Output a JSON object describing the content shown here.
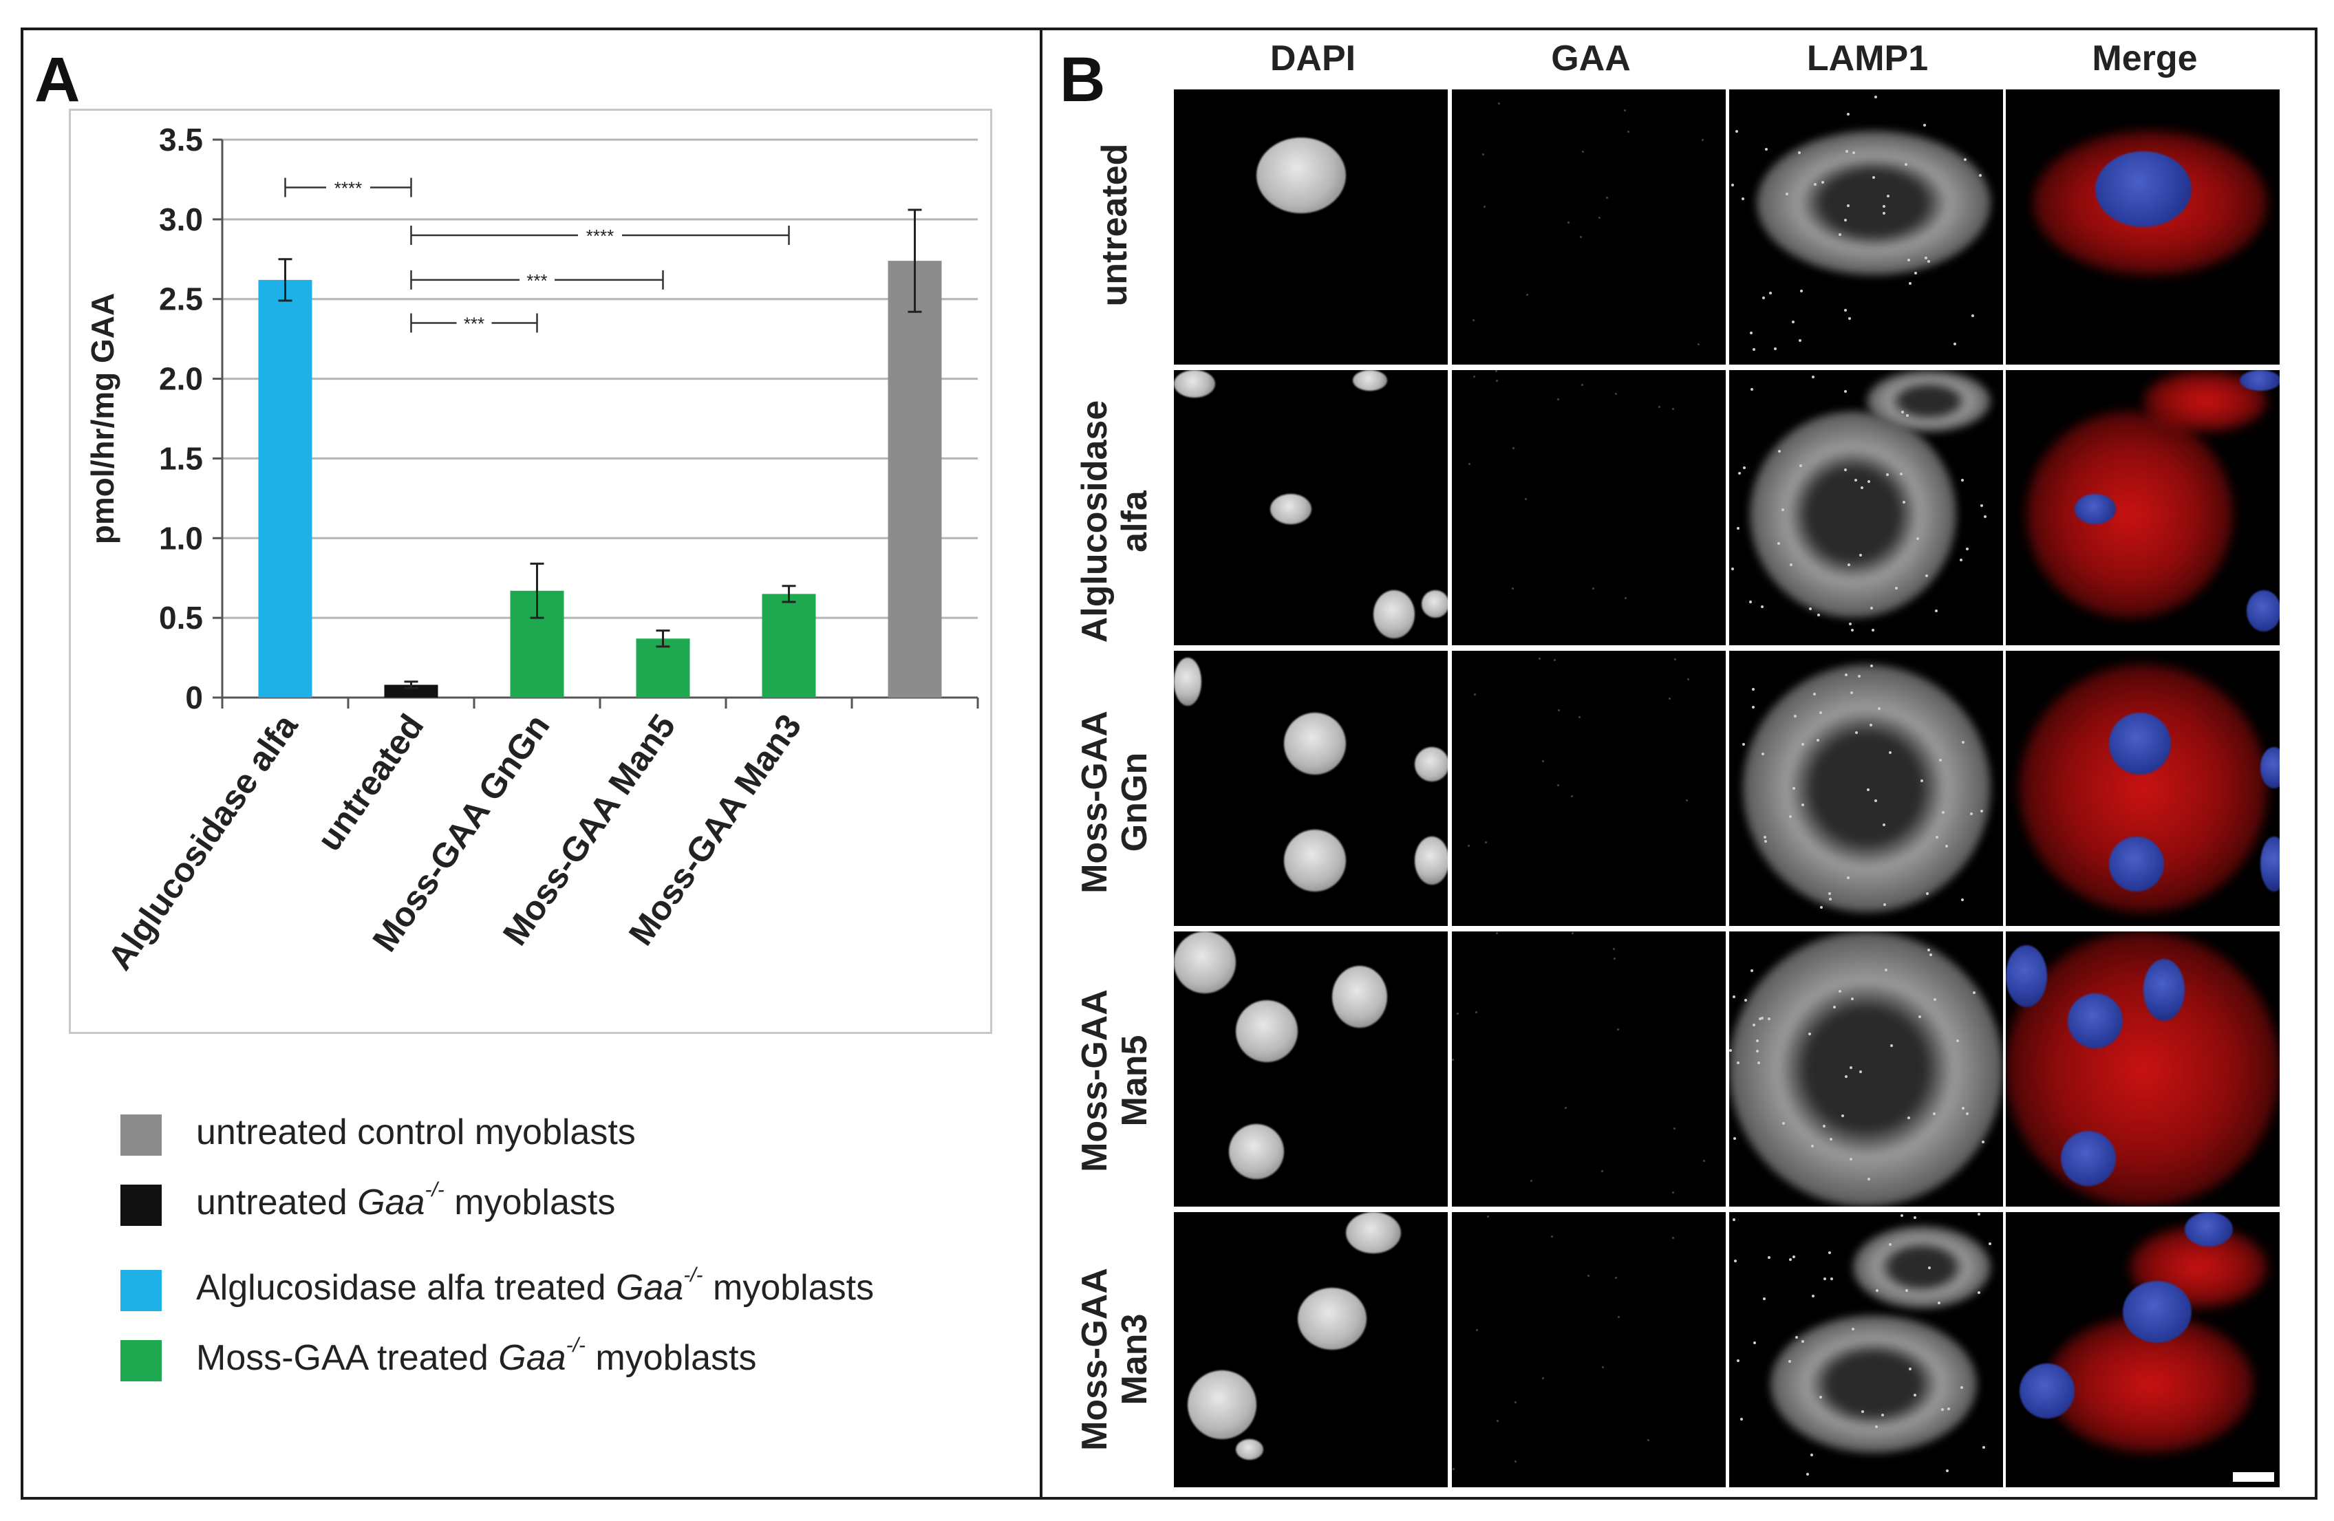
{
  "panel_a": {
    "letter": "A"
  },
  "panel_b": {
    "letter": "B"
  },
  "chart_data": {
    "type": "bar",
    "title": "",
    "xlabel": "",
    "ylabel": "pmol/hr/mg GAA",
    "ylim": [
      0,
      3.5
    ],
    "yticks": [
      "0",
      "0.5",
      "1.0",
      "1.5",
      "2.0",
      "2.5",
      "3.0",
      "3.5"
    ],
    "grid": true,
    "categories": [
      "Alglucosidase alfa",
      "untreated",
      "Moss-GAA GnGn",
      "Moss-GAA Man5",
      "Moss-GAA Man3",
      ""
    ],
    "values": [
      2.62,
      0.08,
      0.67,
      0.37,
      0.65,
      2.74
    ],
    "errors": [
      0.13,
      0.02,
      0.17,
      0.05,
      0.05,
      0.32
    ],
    "colors": [
      "#1eb1e7",
      "#111111",
      "#1ea84f",
      "#1ea84f",
      "#1ea84f",
      "#8c8c8c"
    ],
    "significance": [
      {
        "from": 0,
        "to": 1,
        "y": 3.2,
        "label": "****"
      },
      {
        "from": 1,
        "to": 4,
        "y": 2.9,
        "label": "****"
      },
      {
        "from": 1,
        "to": 3,
        "y": 2.62,
        "label": "***"
      },
      {
        "from": 1,
        "to": 2,
        "y": 2.35,
        "label": "***"
      }
    ]
  },
  "legend": {
    "items": [
      {
        "color": "#8c8c8c",
        "text": "untreated control myoblasts",
        "italic": "",
        "sup": "",
        "after": ""
      },
      {
        "color": "#111111",
        "text": "untreated ",
        "italic": "Gaa",
        "sup": "-/-",
        "after": " myoblasts"
      },
      {
        "color": "#1eb1e7",
        "text": "Alglucosidase alfa treated ",
        "italic": "Gaa",
        "sup": "-/-",
        "after": " myoblasts"
      },
      {
        "color": "#1ea84f",
        "text": "Moss-GAA treated ",
        "italic": "Gaa",
        "sup": "-/-",
        "after": " myoblasts"
      }
    ]
  },
  "micrograph": {
    "columns": [
      "DAPI",
      "GAA",
      "LAMP1",
      "Merge"
    ],
    "rows": [
      [
        "untreated"
      ],
      [
        "Alglucosidase",
        "alfa"
      ],
      [
        "Moss-GAA",
        "GnGn"
      ],
      [
        "Moss-GAA",
        "Man5"
      ],
      [
        "Moss-GAA",
        "Man3"
      ]
    ],
    "nucleus_color": "#2a3d9e",
    "lysosome_color": "#e01414"
  }
}
